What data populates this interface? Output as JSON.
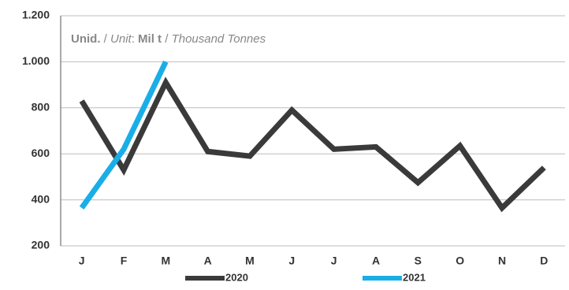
{
  "chart_data": {
    "type": "line",
    "annotation": [
      "Unid.",
      " / ",
      "Unit",
      ": ",
      "Mil t",
      " / ",
      "Thousand Tonnes"
    ],
    "categories": [
      "J",
      "F",
      "M",
      "A",
      "M",
      "J",
      "J",
      "A",
      "S",
      "O",
      "N",
      "D"
    ],
    "series": [
      {
        "name": "2020",
        "color": "#3a3a3a",
        "values": [
          830,
          530,
          910,
          610,
          590,
          790,
          620,
          630,
          475,
          635,
          365,
          540
        ]
      },
      {
        "name": "2021",
        "color": "#1aaee8",
        "values": [
          365,
          620,
          1000,
          null,
          null,
          null,
          null,
          null,
          null,
          null,
          null,
          null
        ]
      }
    ],
    "ylim": [
      200,
      1200
    ],
    "yticks": [
      200,
      400,
      600,
      800,
      {
        "value": 1000,
        "label": "1.000"
      },
      {
        "value": 1200,
        "label": "1.200"
      }
    ],
    "grid": true
  }
}
